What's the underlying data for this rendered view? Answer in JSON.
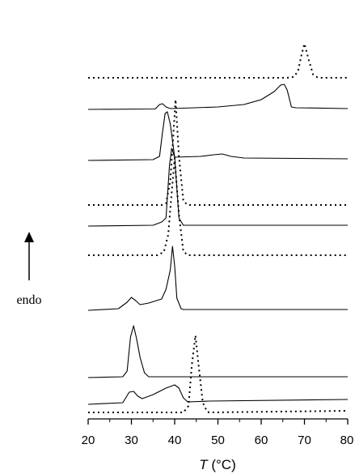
{
  "chart_data": {
    "type": "line",
    "xlabel_symbol": "T",
    "xlabel_unit": " (°C)",
    "ylabel": "endo",
    "xlim": [
      20,
      80
    ],
    "ticks": [
      20,
      30,
      40,
      50,
      60,
      70,
      80
    ],
    "tick_labels": [
      "20",
      "30",
      "40",
      "50",
      "60",
      "70",
      "80"
    ],
    "grid": false,
    "series": [
      {
        "style": "dotted",
        "points": [
          [
            20,
            0
          ],
          [
            66,
            0
          ],
          [
            67.5,
            1
          ],
          [
            68.5,
            8
          ],
          [
            69.3,
            28
          ],
          [
            70,
            42
          ],
          [
            71,
            22
          ],
          [
            72,
            4
          ],
          [
            73,
            0.5
          ],
          [
            74,
            0
          ],
          [
            80,
            0
          ]
        ]
      },
      {
        "style": "solid",
        "points": [
          [
            20,
            0
          ],
          [
            35.5,
            0.5
          ],
          [
            36.5,
            6
          ],
          [
            37.2,
            7
          ],
          [
            38,
            3
          ],
          [
            39,
            1
          ],
          [
            50,
            3
          ],
          [
            56,
            6
          ],
          [
            60,
            12
          ],
          [
            63,
            22
          ],
          [
            64.5,
            30
          ],
          [
            65.3,
            31
          ],
          [
            66,
            24
          ],
          [
            67,
            3
          ],
          [
            68,
            2
          ],
          [
            80,
            1
          ]
        ]
      },
      {
        "style": "dotted",
        "points": [
          [
            20,
            0
          ],
          [
            37,
            0
          ],
          [
            38,
            2
          ],
          [
            39,
            30
          ],
          [
            39.5,
            70
          ],
          [
            40.2,
            130
          ],
          [
            41,
            60
          ],
          [
            42,
            5
          ],
          [
            43,
            0
          ],
          [
            80,
            0
          ]
        ]
      },
      {
        "style": "solid",
        "points": [
          [
            20,
            0
          ],
          [
            35,
            1
          ],
          [
            36.5,
            5
          ],
          [
            37.2,
            35
          ],
          [
            37.8,
            58
          ],
          [
            38.3,
            60
          ],
          [
            39,
            45
          ],
          [
            40,
            4
          ],
          [
            46,
            5
          ],
          [
            49,
            7
          ],
          [
            51,
            8
          ],
          [
            53,
            5
          ],
          [
            56,
            3
          ],
          [
            80,
            2
          ]
        ]
      },
      {
        "style": "solid",
        "points": [
          [
            20,
            0
          ],
          [
            35,
            1
          ],
          [
            37,
            5
          ],
          [
            38,
            10
          ],
          [
            38.8,
            75
          ],
          [
            39.3,
            96
          ],
          [
            40,
            85
          ],
          [
            41,
            10
          ],
          [
            42,
            1
          ],
          [
            80,
            1
          ]
        ]
      },
      {
        "style": "dotted",
        "points": [
          [
            20,
            0
          ],
          [
            36,
            0
          ],
          [
            37.5,
            4
          ],
          [
            38.5,
            25
          ],
          [
            39.2,
            70
          ],
          [
            40,
            120
          ],
          [
            41,
            50
          ],
          [
            42,
            5
          ],
          [
            43,
            0
          ],
          [
            80,
            0
          ]
        ]
      },
      {
        "style": "solid",
        "points": [
          [
            20,
            0
          ],
          [
            27,
            2
          ],
          [
            29,
            10
          ],
          [
            30,
            16
          ],
          [
            31,
            12
          ],
          [
            32,
            7
          ],
          [
            34,
            9
          ],
          [
            37,
            14
          ],
          [
            38,
            26
          ],
          [
            39,
            50
          ],
          [
            39.5,
            79
          ],
          [
            40,
            55
          ],
          [
            40.5,
            15
          ],
          [
            41.5,
            2
          ],
          [
            42,
            1
          ],
          [
            80,
            1
          ]
        ]
      },
      {
        "style": "solid",
        "points": [
          [
            20,
            0
          ],
          [
            28,
            1
          ],
          [
            29,
            8
          ],
          [
            29.8,
            50
          ],
          [
            30.5,
            64
          ],
          [
            31.2,
            48
          ],
          [
            32,
            25
          ],
          [
            33,
            6
          ],
          [
            34,
            1
          ],
          [
            80,
            1
          ]
        ]
      },
      {
        "style": "dotted",
        "points": [
          [
            20,
            0
          ],
          [
            42,
            0
          ],
          [
            43.2,
            8
          ],
          [
            44,
            60
          ],
          [
            44.8,
            95
          ],
          [
            45.5,
            60
          ],
          [
            46.5,
            12
          ],
          [
            47.5,
            1
          ],
          [
            48,
            0
          ],
          [
            80,
            2
          ]
        ]
      },
      {
        "style": "solid",
        "points": [
          [
            20,
            0
          ],
          [
            28,
            2
          ],
          [
            29.5,
            15
          ],
          [
            30.5,
            16
          ],
          [
            31.5,
            10
          ],
          [
            32.5,
            7
          ],
          [
            35,
            12
          ],
          [
            38,
            20
          ],
          [
            40,
            24
          ],
          [
            41,
            20
          ],
          [
            42,
            8
          ],
          [
            43,
            3
          ],
          [
            48,
            4
          ],
          [
            80,
            6
          ]
        ]
      }
    ]
  }
}
